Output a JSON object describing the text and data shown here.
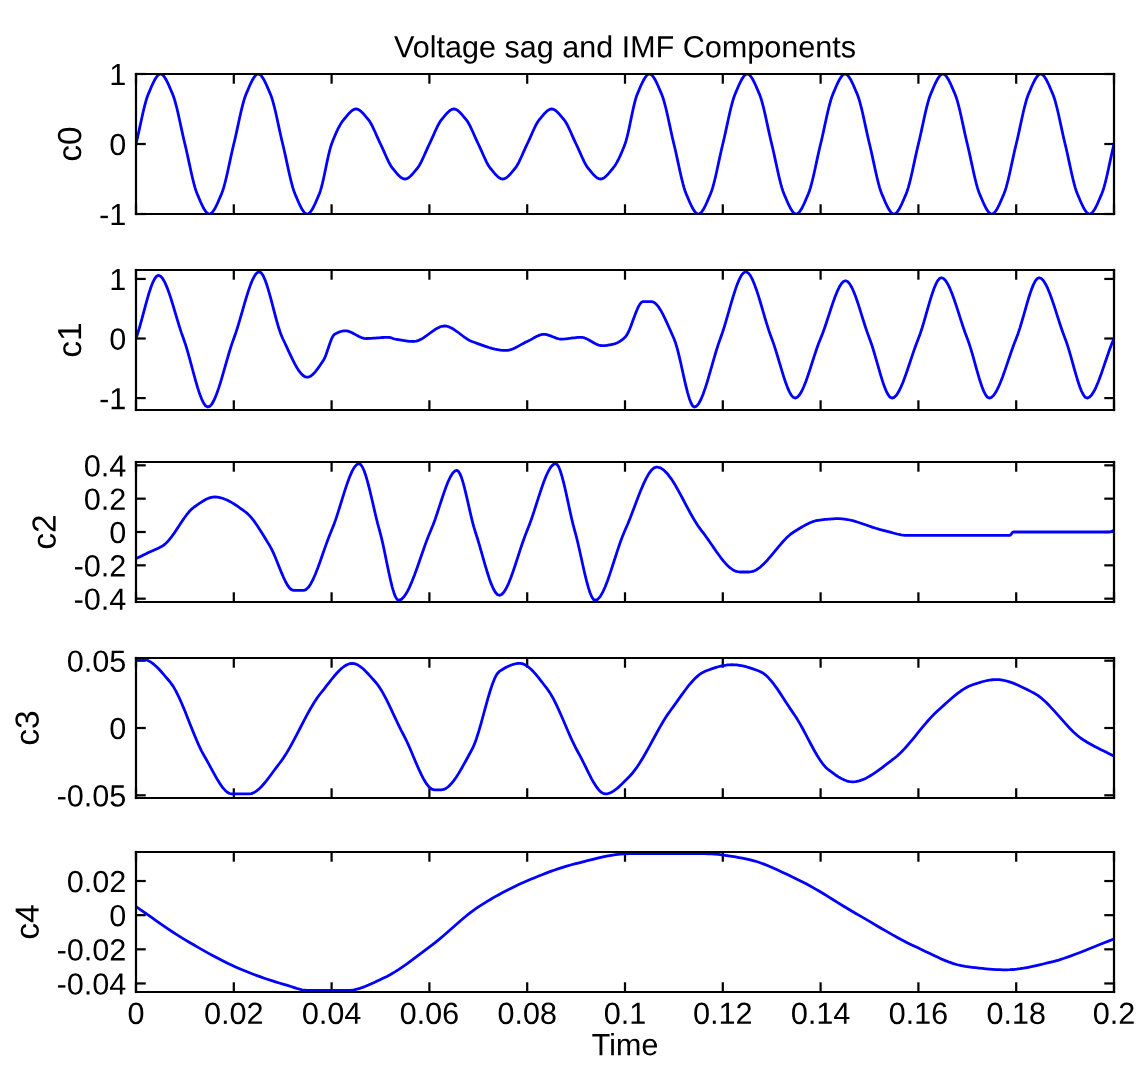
{
  "chart_data": [
    {
      "type": "line",
      "title": "Voltage sag and IMF Components",
      "ylabel": "c0",
      "color": "#0000ff",
      "xlim": [
        0,
        0.2
      ],
      "xticks": [
        0,
        0.02,
        0.04,
        0.06,
        0.08,
        0.1,
        0.12,
        0.14,
        0.16,
        0.18,
        0.2
      ],
      "ylim": [
        -1,
        1
      ],
      "yticks": [
        -1,
        0,
        1
      ],
      "tick_labels": "y",
      "grid": false,
      "x": [
        0,
        0.0025,
        0.005,
        0.0075,
        0.01,
        0.0125,
        0.015,
        0.0175,
        0.02,
        0.0225,
        0.025,
        0.0275,
        0.03,
        0.0325,
        0.035,
        0.0375,
        0.04,
        0.0425,
        0.045,
        0.0475,
        0.05,
        0.0525,
        0.055,
        0.0575,
        0.06,
        0.0625,
        0.065,
        0.0675,
        0.07,
        0.0725,
        0.075,
        0.0775,
        0.08,
        0.0825,
        0.085,
        0.0875,
        0.09,
        0.0925,
        0.095,
        0.0975,
        0.1,
        0.1025,
        0.105,
        0.1075,
        0.11,
        0.1125,
        0.115,
        0.1175,
        0.12,
        0.1225,
        0.125,
        0.1275,
        0.13,
        0.1325,
        0.135,
        0.1375,
        0.14,
        0.1425,
        0.145,
        0.1475,
        0.15,
        0.1525,
        0.155,
        0.1575,
        0.16,
        0.1625,
        0.165,
        0.1675,
        0.17,
        0.1725,
        0.175,
        0.1775,
        0.18,
        0.1825,
        0.185,
        0.1875,
        0.19,
        0.1925,
        0.195,
        0.1975,
        0.2
      ],
      "values": [
        0,
        0.71,
        1,
        0.71,
        0,
        -0.71,
        -1,
        -0.71,
        0,
        0.71,
        1,
        0.71,
        0,
        -0.71,
        -1,
        -0.71,
        0,
        0.35,
        0.5,
        0.35,
        0,
        -0.35,
        -0.5,
        -0.35,
        0,
        0.35,
        0.5,
        0.35,
        0,
        -0.35,
        -0.5,
        -0.35,
        0,
        0.35,
        0.5,
        0.35,
        0,
        -0.35,
        -0.5,
        -0.35,
        0,
        0.71,
        1,
        0.71,
        0,
        -0.71,
        -1,
        -0.71,
        0,
        0.71,
        1,
        0.71,
        0,
        -0.71,
        -1,
        -0.71,
        0,
        0.71,
        1,
        0.71,
        0,
        -0.71,
        -1,
        -0.71,
        0,
        0.71,
        1,
        0.71,
        0,
        -0.71,
        -1,
        -0.71,
        0,
        0.71,
        1,
        0.71,
        0,
        -0.71,
        -1,
        -0.71,
        0
      ]
    },
    {
      "type": "line",
      "ylabel": "c1",
      "color": "#0000ff",
      "xlim": [
        0,
        0.2
      ],
      "xticks": [
        0,
        0.02,
        0.04,
        0.06,
        0.08,
        0.1,
        0.12,
        0.14,
        0.16,
        0.18,
        0.2
      ],
      "ylim": [
        -1.2,
        1.15
      ],
      "yticks": [
        -1,
        0,
        1
      ],
      "tick_labels": "y",
      "grid": false,
      "x": [
        0,
        0.0046,
        0.0097,
        0.0147,
        0.02,
        0.0252,
        0.03,
        0.035,
        0.0383,
        0.0406,
        0.0428,
        0.047,
        0.0516,
        0.053,
        0.0568,
        0.0631,
        0.0687,
        0.0757,
        0.08,
        0.0834,
        0.087,
        0.091,
        0.0953,
        0.0978,
        0.1,
        0.1037,
        0.1054,
        0.11,
        0.1142,
        0.1195,
        0.1247,
        0.13,
        0.1348,
        0.14,
        0.1451,
        0.15,
        0.1546,
        0.16,
        0.1647,
        0.17,
        0.1745,
        0.18,
        0.1847,
        0.19,
        0.1945,
        0.2
      ],
      "values": [
        0,
        1.06,
        0,
        -1.15,
        0,
        1.12,
        0,
        -0.65,
        -0.37,
        0.07,
        0.13,
        0,
        0.02,
        -0.01,
        -0.05,
        0.21,
        -0.05,
        -0.2,
        -0.05,
        0.07,
        -0.01,
        0.02,
        -0.12,
        -0.09,
        0.02,
        0.62,
        0.62,
        0,
        -1.15,
        0,
        1.12,
        0,
        -1.0,
        0,
        0.97,
        0,
        -1.0,
        0,
        1.02,
        0,
        -1.0,
        0,
        1.02,
        0,
        -1.0,
        0
      ]
    },
    {
      "type": "line",
      "ylabel": "c2",
      "color": "#0000ff",
      "xlim": [
        0,
        0.2
      ],
      "xticks": [
        0,
        0.02,
        0.04,
        0.06,
        0.08,
        0.1,
        0.12,
        0.14,
        0.16,
        0.18,
        0.2
      ],
      "ylim": [
        -0.42,
        0.42
      ],
      "yticks": [
        -0.4,
        -0.2,
        0,
        0.2,
        0.4
      ],
      "tick_labels": "y",
      "grid": false,
      "x": [
        0,
        0.0028,
        0.0056,
        0.0119,
        0.0161,
        0.0224,
        0.0273,
        0.0322,
        0.0343,
        0.04,
        0.0456,
        0.0498,
        0.0537,
        0.0603,
        0.0656,
        0.0694,
        0.0743,
        0.08,
        0.0858,
        0.0897,
        0.0939,
        0.1,
        0.1065,
        0.1156,
        0.1234,
        0.1254,
        0.1345,
        0.1395,
        0.1437,
        0.1528,
        0.1577,
        0.1787,
        0.1794,
        0.199,
        0.2
      ],
      "values": [
        -0.16,
        -0.12,
        -0.08,
        0.15,
        0.21,
        0.12,
        -0.08,
        -0.35,
        -0.35,
        0.01,
        0.41,
        0.01,
        -0.41,
        0.01,
        0.37,
        0,
        -0.38,
        0.01,
        0.41,
        0.01,
        -0.41,
        0.01,
        0.39,
        0.01,
        -0.24,
        -0.24,
        0,
        0.07,
        0.08,
        0.01,
        -0.02,
        -0.02,
        0,
        0,
        0.01
      ]
    },
    {
      "type": "line",
      "ylabel": "c3",
      "color": "#0000ff",
      "xlim": [
        0,
        0.2
      ],
      "xticks": [
        0,
        0.02,
        0.04,
        0.06,
        0.08,
        0.1,
        0.12,
        0.14,
        0.16,
        0.18,
        0.2
      ],
      "ylim": [
        -0.052,
        0.052
      ],
      "yticks": [
        -0.05,
        0,
        0.05
      ],
      "tick_labels": "y",
      "grid": false,
      "x": [
        0,
        0.0014,
        0.007,
        0.014,
        0.0196,
        0.0231,
        0.0294,
        0.0378,
        0.0442,
        0.049,
        0.0547,
        0.061,
        0.0624,
        0.0687,
        0.0743,
        0.0785,
        0.0841,
        0.0904,
        0.096,
        0.1009,
        0.1093,
        0.1163,
        0.1219,
        0.1276,
        0.1346,
        0.1416,
        0.1465,
        0.1549,
        0.164,
        0.171,
        0.1759,
        0.1836,
        0.1934,
        0.2
      ],
      "values": [
        0.051,
        0.051,
        0.034,
        -0.021,
        -0.049,
        -0.049,
        -0.026,
        0.026,
        0.048,
        0.034,
        -0.005,
        -0.046,
        -0.046,
        -0.016,
        0.042,
        0.048,
        0.029,
        -0.018,
        -0.049,
        -0.036,
        0.013,
        0.042,
        0.047,
        0.042,
        0.01,
        -0.031,
        -0.04,
        -0.023,
        0.013,
        0.032,
        0.036,
        0.026,
        -0.008,
        -0.021
      ]
    },
    {
      "type": "line",
      "ylabel": "c4",
      "xlabel": "Time",
      "color": "#0000ff",
      "xlim": [
        0,
        0.2
      ],
      "xticks": [
        0,
        0.02,
        0.04,
        0.06,
        0.08,
        0.1,
        0.12,
        0.14,
        0.16,
        0.18,
        0.2
      ],
      "ylim": [
        -0.045,
        0.037
      ],
      "yticks": [
        -0.04,
        -0.02,
        0,
        0.02
      ],
      "grid": false,
      "x": [
        0,
        0.0098,
        0.0217,
        0.0308,
        0.035,
        0.0434,
        0.0505,
        0.0603,
        0.0701,
        0.0799,
        0.0897,
        0.1009,
        0.1163,
        0.1247,
        0.1359,
        0.1472,
        0.1598,
        0.1696,
        0.178,
        0.1864,
        0.2
      ],
      "values": [
        0.005,
        -0.014,
        -0.032,
        -0.041,
        -0.044,
        -0.044,
        -0.037,
        -0.018,
        0.005,
        0.02,
        0.03,
        0.036,
        0.036,
        0.033,
        0.02,
        0.001,
        -0.019,
        -0.03,
        -0.032,
        -0.028,
        -0.014
      ]
    }
  ]
}
